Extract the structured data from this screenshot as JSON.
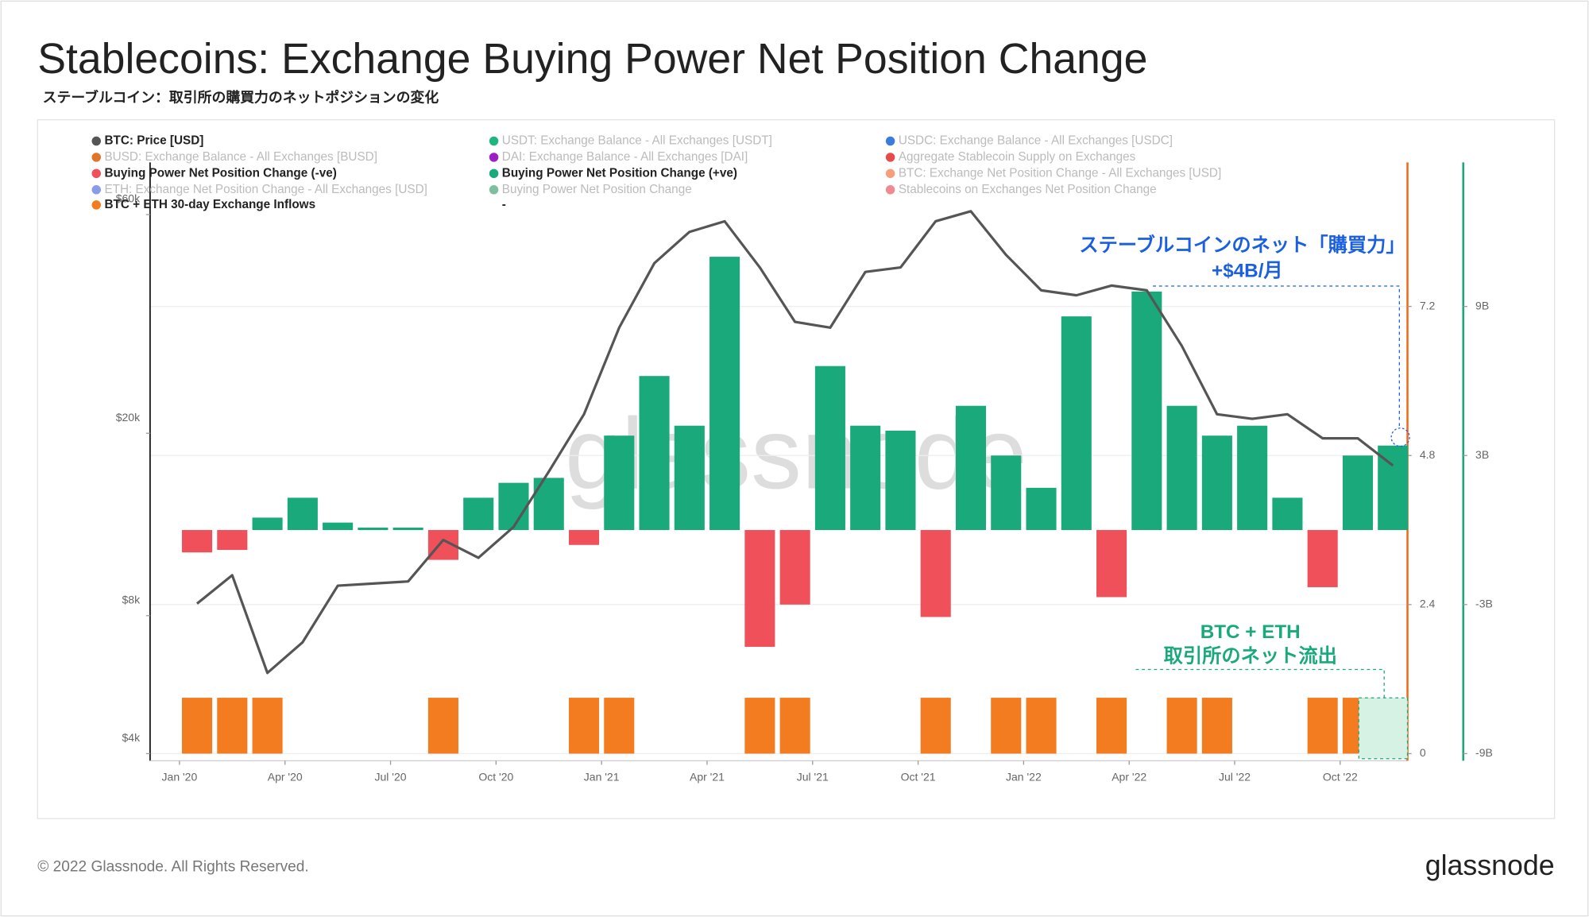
{
  "chart_data": {
    "type": "bar-line",
    "title": "Stablecoins: Exchange Buying Power Net Position Change",
    "subtitle": "ステーブルコイン：取引所の購買力のネットポジションの変化",
    "watermark": "glassnode",
    "x": [
      "2020-01",
      "2020-02",
      "2020-03",
      "2020-04",
      "2020-05",
      "2020-06",
      "2020-07",
      "2020-08",
      "2020-09",
      "2020-10",
      "2020-11",
      "2020-12",
      "2021-01",
      "2021-02",
      "2021-03",
      "2021-04",
      "2021-05",
      "2021-06",
      "2021-07",
      "2021-08",
      "2021-09",
      "2021-10",
      "2021-11",
      "2021-12",
      "2022-01",
      "2022-02",
      "2022-03",
      "2022-04",
      "2022-05",
      "2022-06",
      "2022-07",
      "2022-08",
      "2022-09",
      "2022-10",
      "2022-11"
    ],
    "xlim": [
      "2020-01",
      "2022-12"
    ],
    "xticks": [
      {
        "value": "2020-01",
        "label": "Jan '20"
      },
      {
        "value": "2020-04",
        "label": "Apr '20"
      },
      {
        "value": "2020-07",
        "label": "Jul '20"
      },
      {
        "value": "2020-10",
        "label": "Oct '20"
      },
      {
        "value": "2021-01",
        "label": "Jan '21"
      },
      {
        "value": "2021-04",
        "label": "Apr '21"
      },
      {
        "value": "2021-07",
        "label": "Jul '21"
      },
      {
        "value": "2021-10",
        "label": "Oct '21"
      },
      {
        "value": "2022-01",
        "label": "Jan '22"
      },
      {
        "value": "2022-04",
        "label": "Apr '22"
      },
      {
        "value": "2022-07",
        "label": "Jul '22"
      },
      {
        "value": "2022-10",
        "label": "Oct '22"
      }
    ],
    "ylim": [
      4000,
      78000
    ],
    "log_y": true,
    "yticks": [
      {
        "value": 4000,
        "label": "$4k"
      },
      {
        "value": 8000,
        "label": "$8k"
      },
      {
        "value": 20000,
        "label": "$20k"
      },
      {
        "value": 60000,
        "label": "$60k"
      }
    ],
    "y2lim": [
      -9,
      14.8
    ],
    "y2ticks": [
      {
        "value": -9,
        "label": "-9B"
      },
      {
        "value": -3,
        "label": "-3B"
      },
      {
        "value": 3,
        "label": "3B"
      },
      {
        "value": 9,
        "label": "9B"
      }
    ],
    "y2_color": "#1aa97a",
    "y3lim": [
      0,
      9.52
    ],
    "y3ticks": [
      0,
      2.4,
      4.8,
      7.2
    ],
    "y3_color": "#f26a1b",
    "grid": true,
    "series": [
      {
        "name": "BTC: Price [USD]",
        "color": "#555555",
        "kind": "line",
        "axis": "y",
        "values": [
          8500,
          9800,
          6000,
          7000,
          9300,
          9400,
          9500,
          11700,
          10700,
          12500,
          16500,
          22000,
          34000,
          47000,
          55000,
          58000,
          46000,
          35000,
          34000,
          45000,
          46000,
          58000,
          61000,
          49000,
          41000,
          40000,
          42000,
          41000,
          31000,
          22000,
          21500,
          22000,
          19500,
          19500,
          17000
        ]
      },
      {
        "name": "USDT: Exchange Balance - All Exchanges [USDT]",
        "color": "#1fb57f",
        "hidden": true
      },
      {
        "name": "USDC: Exchange Balance - All Exchanges [USDC]",
        "color": "#3a7be0",
        "hidden": true
      },
      {
        "name": "BUSD: Exchange Balance - All Exchanges [BUSD]",
        "color": "#e0742a",
        "hidden": true
      },
      {
        "name": "DAI: Exchange Balance - All Exchanges [DAI]",
        "color": "#9b1fc4",
        "hidden": true
      },
      {
        "name": "Aggregate Stablecoin Supply on Exchanges",
        "color": "#e84a4a",
        "hidden": true
      },
      {
        "name": "Buying Power Net Position Change (-ve)",
        "color": "#f0505a",
        "kind": "bar",
        "axis": "y2",
        "values": [
          -0.9,
          -0.8,
          null,
          null,
          null,
          null,
          null,
          -1.2,
          null,
          null,
          null,
          -0.6,
          null,
          null,
          null,
          null,
          -4.7,
          -3.0,
          null,
          null,
          null,
          -3.5,
          null,
          null,
          null,
          null,
          -2.7,
          null,
          null,
          null,
          null,
          null,
          -2.3,
          null,
          null
        ]
      },
      {
        "name": "Buying Power Net Position Change (+ve)",
        "color": "#1aa97a",
        "kind": "bar",
        "axis": "y2",
        "values": [
          null,
          null,
          0.5,
          1.3,
          0.3,
          0.1,
          0.1,
          null,
          1.3,
          1.9,
          2.1,
          null,
          3.8,
          6.2,
          4.2,
          11.0,
          null,
          null,
          6.6,
          4.2,
          4.0,
          null,
          5.0,
          3.0,
          1.7,
          8.6,
          null,
          9.6,
          5.0,
          3.8,
          4.2,
          1.3,
          null,
          3.0,
          3.4
        ]
      },
      {
        "name": "BTC: Exchange Net Position Change - All Exchanges [USD]",
        "color": "#f5a07a",
        "hidden": true
      },
      {
        "name": "ETH: Exchange Net Position Change - All Exchanges [USD]",
        "color": "#8a9be8",
        "hidden": true
      },
      {
        "name": "Buying Power Net Position Change",
        "color": "#7fbfa0",
        "hidden": true
      },
      {
        "name": "Stablecoins on Exchanges Net Position Change",
        "color": "#f08a90",
        "hidden": true
      },
      {
        "name": "BTC + ETH 30-day Exchange Inflows",
        "color": "#f47c20",
        "kind": "bar",
        "axis": "y3",
        "values": [
          0.9,
          0.9,
          0.9,
          0,
          0,
          0,
          0,
          0.9,
          0,
          0,
          0,
          0.9,
          0.9,
          0,
          0,
          0,
          0.9,
          0.9,
          0,
          0,
          0,
          0.9,
          0,
          0.9,
          0.9,
          0,
          0.9,
          0,
          0.9,
          0.9,
          0,
          0,
          0.9,
          0.9,
          0
        ]
      },
      {
        "name": "-"
      }
    ],
    "annotations": [
      {
        "text": "ステーブルコインのネット「購買力」",
        "color": "#1a5fe0"
      },
      {
        "text": "+$4B/月",
        "color": "#1a5fe0"
      },
      {
        "text": "BTC + ETH",
        "color": "#1aa97a"
      },
      {
        "text": "取引所のネット流出",
        "color": "#1aa97a"
      }
    ]
  },
  "footer": {
    "copyright": "© 2022 Glassnode. All Rights Reserved.",
    "logo": "glassnode"
  }
}
